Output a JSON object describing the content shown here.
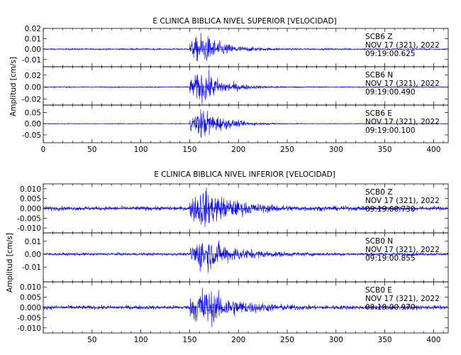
{
  "chart_data": [
    {
      "type": "line",
      "title": "E CLINICA BIBLICA NIVEL SUPERIOR [VELOCIDAD]",
      "ylabel": "Amplitud [cm/s]",
      "xlim": [
        0,
        415
      ],
      "xticks": [
        0,
        50,
        100,
        150,
        200,
        250,
        300,
        350,
        400
      ],
      "event": {
        "onset": 150,
        "peak": 163,
        "decay_end": 230
      },
      "series": [
        {
          "station": "SCB6",
          "component": "Z",
          "date": "NOV 17 (321), 2022",
          "time": "09:19:00.625",
          "ylim": [
            -0.017,
            0.02
          ],
          "yticks": [
            0.02,
            0.01,
            0.0,
            -0.01
          ],
          "ytick_labels": [
            "0.02",
            "0.01",
            "0.00",
            "-0.01"
          ],
          "noise_amplitude": 0.0008,
          "peak_amplitude": 0.018
        },
        {
          "station": "SCB6",
          "component": "N",
          "date": "NOV 17 (321), 2022",
          "time": "09:19:00.490",
          "ylim": [
            -0.03,
            0.034
          ],
          "yticks": [
            0.02,
            0.0,
            -0.02
          ],
          "ytick_labels": [
            "0.02",
            "0.00",
            "-0.02"
          ],
          "noise_amplitude": 0.001,
          "peak_amplitude": 0.033
        },
        {
          "station": "SCB6",
          "component": "E",
          "date": "NOV 17 (321), 2022",
          "time": "09:19:00.100",
          "ylim": [
            -0.085,
            0.083
          ],
          "yticks": [
            0.05,
            0.0,
            -0.05
          ],
          "ytick_labels": [
            "0.05",
            "0.00",
            "-0.05"
          ],
          "noise_amplitude": 0.002,
          "peak_amplitude": 0.08
        }
      ]
    },
    {
      "type": "line",
      "title": "E CLINICA BIBLICA NIVEL INFERIOR [VELOCIDAD]",
      "ylabel": "Amplitud [cm/s]",
      "xlim": [
        0,
        415
      ],
      "xticks": [
        50,
        100,
        150,
        200,
        250,
        300,
        350,
        400
      ],
      "event": {
        "onset": 150,
        "peak": 163,
        "decay_end": 260
      },
      "series": [
        {
          "station": "SCB0",
          "component": "Z",
          "date": "NOV 17 (321), 2022",
          "time": "09:19:00.730",
          "ylim": [
            -0.0125,
            0.0125
          ],
          "yticks": [
            0.01,
            0.005,
            0.0,
            -0.005,
            -0.01
          ],
          "ytick_labels": [
            "0.010",
            "0.005",
            "0.000",
            "-0.005",
            "-0.010"
          ],
          "noise_amplitude": 0.0012,
          "peak_amplitude": 0.0118
        },
        {
          "station": "SCB0",
          "component": "N",
          "date": "NOV 17 (321), 2022",
          "time": "09:19:00.855",
          "ylim": [
            -0.0215,
            0.0165
          ],
          "yticks": [
            0.01,
            0.0,
            -0.01
          ],
          "ytick_labels": [
            "0.01",
            "0.00",
            "-0.01"
          ],
          "noise_amplitude": 0.0012,
          "peak_amplitude": 0.016
        },
        {
          "station": "SCB0",
          "component": "E",
          "date": "NOV 17 (321), 2022",
          "time": "09:19:00.970",
          "ylim": [
            -0.0125,
            0.0125
          ],
          "yticks": [
            0.01,
            0.005,
            0.0,
            -0.005,
            -0.01
          ],
          "ytick_labels": [
            "0.010",
            "0.005",
            "0.000",
            "-0.005",
            "-0.010"
          ],
          "noise_amplitude": 0.0011,
          "peak_amplitude": 0.0118
        }
      ]
    }
  ]
}
